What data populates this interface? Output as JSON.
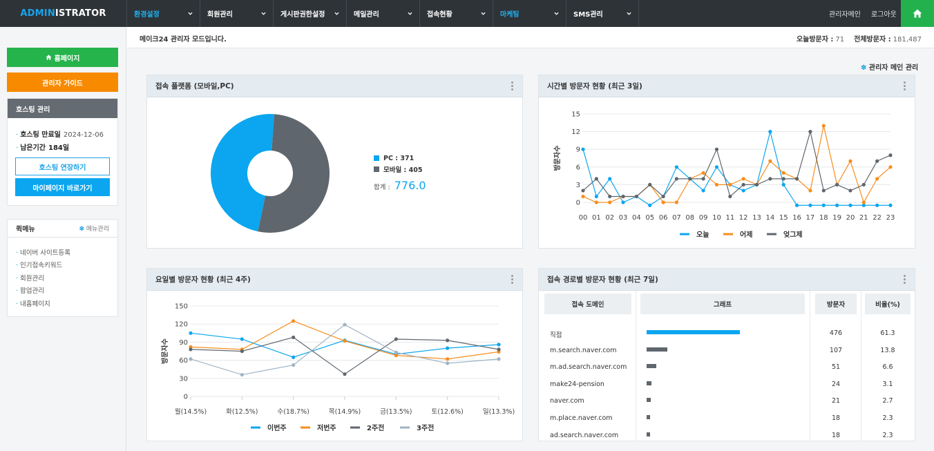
{
  "logo": {
    "accent": "ADMIN",
    "rest": "ISTRATOR"
  },
  "nav": [
    {
      "label": "환경설정",
      "active": true
    },
    {
      "label": "회원관리",
      "active": false
    },
    {
      "label": "게시판권한설정",
      "active": false
    },
    {
      "label": "메일관리",
      "active": false
    },
    {
      "label": "접속현황",
      "active": false
    },
    {
      "label": "마케팅",
      "active": true
    },
    {
      "label": "SMS관리",
      "active": false
    }
  ],
  "top_links": {
    "admin_main": "관리자메인",
    "logout": "로그아웃"
  },
  "home_icon": "home-icon",
  "sidebar": {
    "homepage_btn": "홈페이지",
    "guide_btn": "관리자 가이드",
    "hosting_title": "호스팅 관리",
    "hosting_expire_label": "호스팅 만료일",
    "hosting_expire_value": "2024-12-06",
    "hosting_remain_label": "남은기간",
    "hosting_remain_value": "184일",
    "extend_btn": "호스팅 연장하기",
    "mypage_btn": "마이페이지 바로가기",
    "quick_title": "퀵메뉴",
    "quick_manage": "메뉴관리",
    "quick_items": [
      "네이버 사이트등록",
      "인기접속키워드",
      "회원관리",
      "팝업관리",
      "내홈페이지"
    ]
  },
  "infobar": {
    "message": "메이크24 관리자 모드입니다.",
    "today_label": "오늘방문자 :",
    "today_value": "71",
    "total_label": "전체방문자 :",
    "total_value": "181,487"
  },
  "admin_main_manage": "관리자 메인 관리",
  "colors": {
    "blue": "#0ba6ef",
    "gray": "#5f666d",
    "orange": "#f68d1e",
    "light": "#9fb3c4",
    "green": "#25b34b",
    "orange_btn": "#f88a00"
  },
  "chart_data": [
    {
      "type": "pie",
      "title": "접속 플랫폼 (모바일,PC)",
      "slices": [
        {
          "label": "PC",
          "value": 371,
          "color": "#0ba6ef"
        },
        {
          "label": "모바일",
          "value": 405,
          "color": "#5f666d"
        }
      ],
      "legend": [
        "PC : 371",
        "모바일 : 405"
      ],
      "total_label": "합계 :",
      "total_value": "776.0"
    },
    {
      "type": "line",
      "title": "시간별 방문자 현황 (최근 3일)",
      "ylabel": "방문자수",
      "ylim": [
        0,
        15
      ],
      "yticks": [
        0,
        3,
        6,
        9,
        12,
        15
      ],
      "categories": [
        "00",
        "01",
        "02",
        "03",
        "04",
        "05",
        "06",
        "07",
        "08",
        "09",
        "10",
        "11",
        "12",
        "13",
        "14",
        "15",
        "16",
        "17",
        "18",
        "19",
        "20",
        "21",
        "22",
        "23"
      ],
      "series": [
        {
          "name": "오늘",
          "color": "#0ba6ef",
          "values": [
            9,
            1,
            4,
            0,
            1,
            -1,
            1,
            6,
            4,
            2,
            6,
            3,
            2,
            3,
            12,
            3,
            -1,
            -1,
            -1,
            -1,
            -1,
            -1,
            -1,
            -1
          ]
        },
        {
          "name": "어제",
          "color": "#f68d1e",
          "values": [
            1,
            0,
            0,
            1,
            1,
            3,
            0,
            0,
            4,
            5,
            3,
            3,
            4,
            3,
            7,
            5,
            4,
            2,
            13,
            3,
            7,
            0,
            4,
            6
          ]
        },
        {
          "name": "엊그제",
          "color": "#5f666d",
          "values": [
            2,
            4,
            1,
            1,
            1,
            3,
            1,
            4,
            4,
            4,
            9,
            1,
            3,
            3,
            4,
            4,
            4,
            12,
            2,
            3,
            2,
            3,
            7,
            8
          ]
        }
      ]
    },
    {
      "type": "line",
      "title": "요일별 방문자 현황 (최근 4주)",
      "ylabel": "방문자수",
      "ylim": [
        0,
        150
      ],
      "yticks": [
        0,
        30,
        60,
        90,
        120,
        150
      ],
      "categories": [
        "월(14.5%)",
        "화(12.5%)",
        "수(18.7%)",
        "목(14.9%)",
        "금(13.5%)",
        "토(12.6%)",
        "일(13.3%)"
      ],
      "series": [
        {
          "name": "이번주",
          "color": "#0ba6ef",
          "values": [
            105,
            95,
            65,
            93,
            70,
            80,
            86
          ]
        },
        {
          "name": "저번주",
          "color": "#f68d1e",
          "values": [
            82,
            78,
            125,
            92,
            68,
            62,
            74
          ]
        },
        {
          "name": "2주전",
          "color": "#5f666d",
          "values": [
            78,
            75,
            98,
            37,
            95,
            93,
            78
          ]
        },
        {
          "name": "3주전",
          "color": "#9fb3c4",
          "values": [
            62,
            36,
            52,
            119,
            73,
            55,
            62
          ]
        }
      ]
    },
    {
      "type": "table",
      "title": "접속 경로별 방문자 현황 (최근 7일)",
      "columns": [
        "접속 도메인",
        "그래프",
        "방문자",
        "비율(%)"
      ],
      "rows": [
        {
          "domain": "직접",
          "visitors": "476",
          "ratio": "61.3",
          "value": 476,
          "color": "#0ba6ef"
        },
        {
          "domain": "m.search.naver.com",
          "visitors": "107",
          "ratio": "13.8",
          "value": 107,
          "color": "#5f666d"
        },
        {
          "domain": "m.ad.search.naver.com",
          "visitors": "51",
          "ratio": "6.6",
          "value": 51,
          "color": "#5f666d"
        },
        {
          "domain": "make24-pension",
          "visitors": "24",
          "ratio": "3.1",
          "value": 24,
          "color": "#5f666d"
        },
        {
          "domain": "naver.com",
          "visitors": "21",
          "ratio": "2.7",
          "value": 21,
          "color": "#5f666d"
        },
        {
          "domain": "m.place.naver.com",
          "visitors": "18",
          "ratio": "2.3",
          "value": 18,
          "color": "#5f666d"
        },
        {
          "domain": "ad.search.naver.com",
          "visitors": "18",
          "ratio": "2.3",
          "value": 18,
          "color": "#5f666d"
        }
      ]
    }
  ]
}
